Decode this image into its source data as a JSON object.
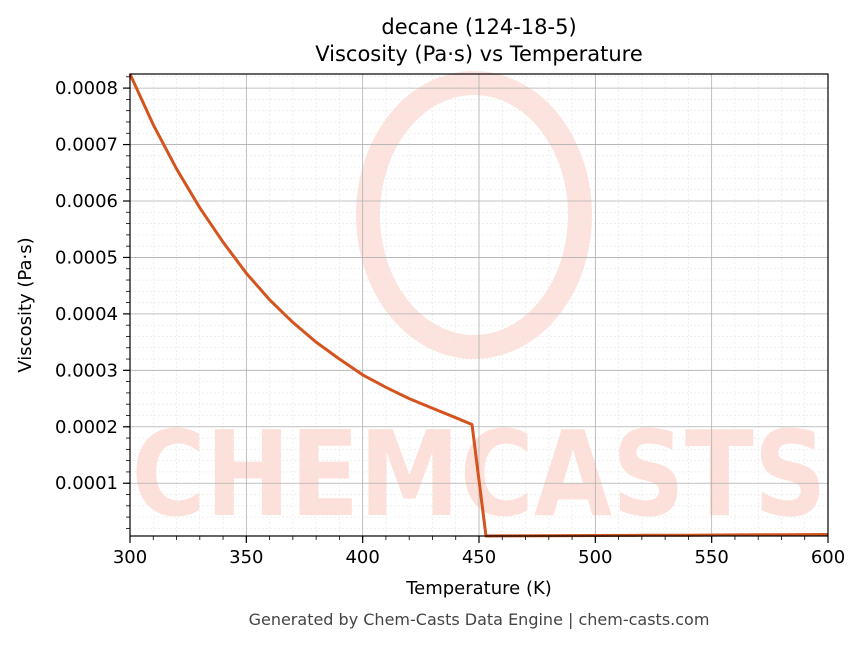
{
  "chart_data": {
    "type": "line",
    "title": "decane (124-18-5)",
    "subtitle": "Viscosity (Pa·s) vs Temperature",
    "xlabel": "Temperature (K)",
    "ylabel": "Viscosity (Pa·s)",
    "xlim": [
      300,
      600
    ],
    "ylim": [
      6.5e-06,
      0.000825
    ],
    "x_ticks": [
      300,
      350,
      400,
      450,
      500,
      550,
      600
    ],
    "x_tick_labels": [
      "300",
      "350",
      "400",
      "450",
      "500",
      "550",
      "600"
    ],
    "y_ticks": [
      0.0001,
      0.0002,
      0.0003,
      0.0004,
      0.0005,
      0.0006,
      0.0007,
      0.0008
    ],
    "y_tick_labels": [
      "0.0001",
      "0.0002",
      "0.0003",
      "0.0004",
      "0.0005",
      "0.0006",
      "0.0007",
      "0.0008"
    ],
    "grid": true,
    "line_color": "#d4541f",
    "series": [
      {
        "x": [
          300,
          310,
          320,
          330,
          340,
          350,
          360,
          370,
          380,
          390,
          400,
          410,
          420,
          430,
          440,
          447,
          453,
          460,
          480,
          500,
          520,
          540,
          560,
          580,
          600
        ],
        "y": [
          0.000825,
          0.000735,
          0.000657,
          0.000588,
          0.000527,
          0.000472,
          0.000425,
          0.000385,
          0.00035,
          0.00032,
          0.000292,
          0.00027,
          0.00025,
          0.000233,
          0.000216,
          0.000204,
          6.5e-06,
          6.6e-06,
          6.9e-06,
          7.3e-06,
          7.7e-06,
          8e-06,
          8.4e-06,
          8.8e-06,
          9.2e-06
        ]
      }
    ]
  },
  "watermark": {
    "text": "CHEMCASTS",
    "color": "#fde0d9"
  },
  "footer": "Generated by Chem-Casts Data Engine | chem-casts.com"
}
